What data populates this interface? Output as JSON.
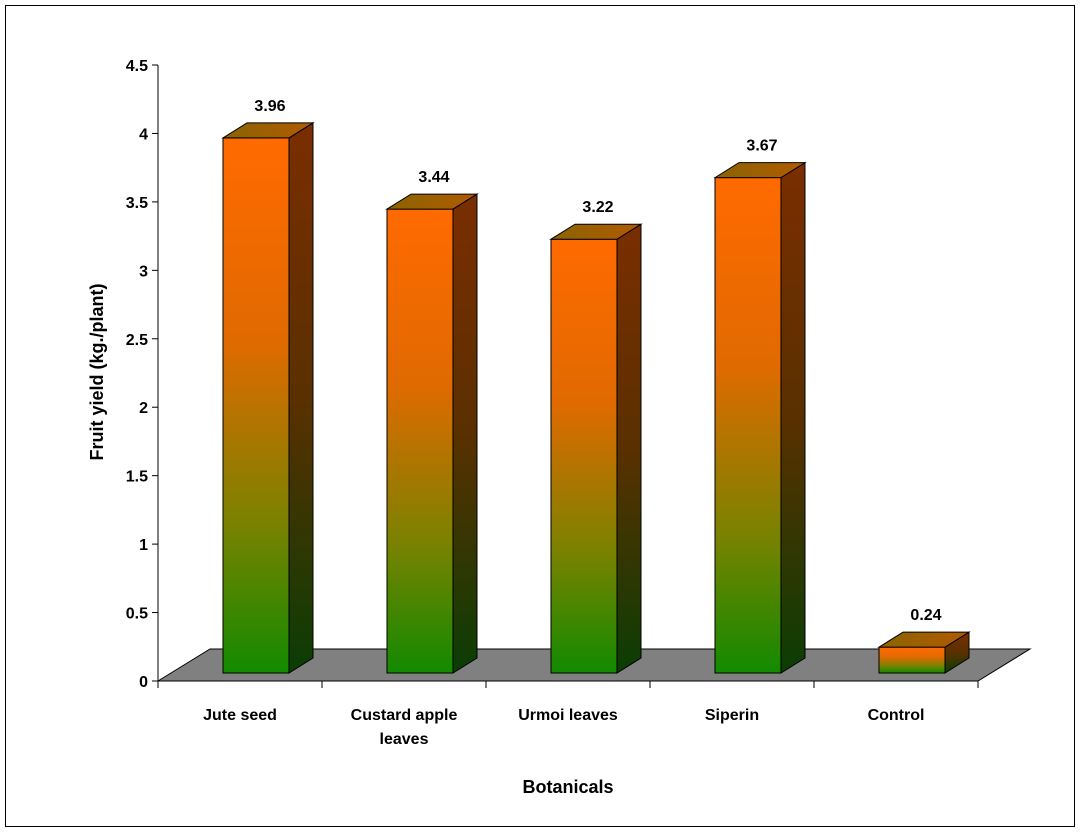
{
  "chart_data": {
    "type": "bar",
    "title": "",
    "xlabel": "Botanicals",
    "ylabel": "Fruit yield (kg./plant)",
    "categories": [
      [
        "Jute seed"
      ],
      [
        "Custard apple",
        "leaves"
      ],
      [
        "Urmoi leaves"
      ],
      [
        "Siperin"
      ],
      [
        "Control"
      ]
    ],
    "values": [
      3.96,
      3.44,
      3.22,
      3.67,
      0.24
    ],
    "data_labels": [
      "3.96",
      "3.44",
      "3.22",
      "3.67",
      "0.24"
    ],
    "ylim": [
      0,
      4.5
    ],
    "yticks": [
      "0",
      "0.5",
      "1",
      "1.5",
      "2",
      "2.5",
      "3",
      "3.5",
      "4",
      "4.5"
    ],
    "grid": false,
    "legend": "none",
    "style": "3d-column",
    "colors": {
      "bar_top_gradient": "#ff6a00",
      "bar_bottom_gradient": "#128a00",
      "bar_side_top": "#7a2e00",
      "bar_side_bottom": "#0b3d05",
      "floor": "#808080"
    }
  }
}
